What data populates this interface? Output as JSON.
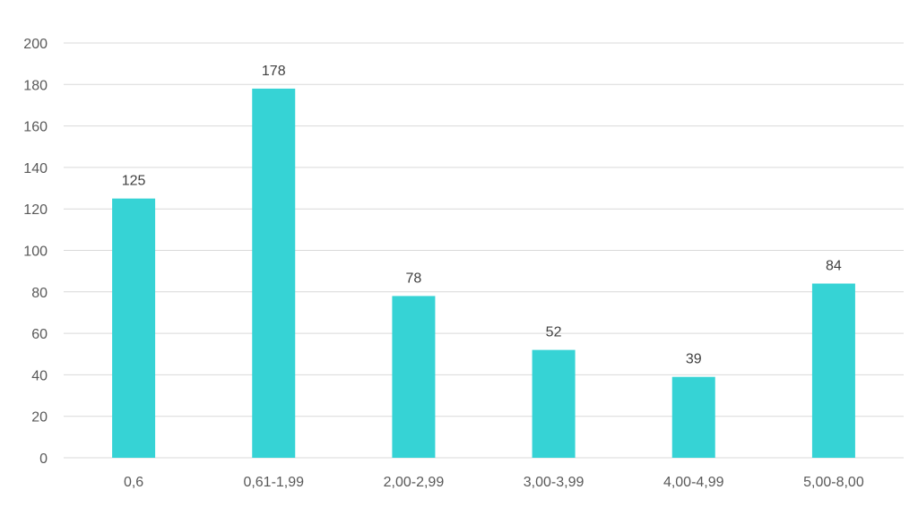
{
  "chart_data": {
    "type": "bar",
    "title": "",
    "xlabel": "",
    "ylabel": "",
    "categories": [
      "0,6",
      "0,61-1,99",
      "2,00-2,99",
      "3,00-3,99",
      "4,00-4,99",
      "5,00-8,00"
    ],
    "values": [
      125,
      178,
      78,
      52,
      39,
      84
    ],
    "data_labels": [
      "125",
      "178",
      "78",
      "52",
      "39",
      "84"
    ],
    "ylim": [
      0,
      200
    ],
    "yticks": [
      0,
      20,
      40,
      60,
      80,
      100,
      120,
      140,
      160,
      180,
      200
    ],
    "grid": true,
    "legend": "none",
    "bar_color": "#36D3D5",
    "grid_color": "#D9D9D9"
  }
}
